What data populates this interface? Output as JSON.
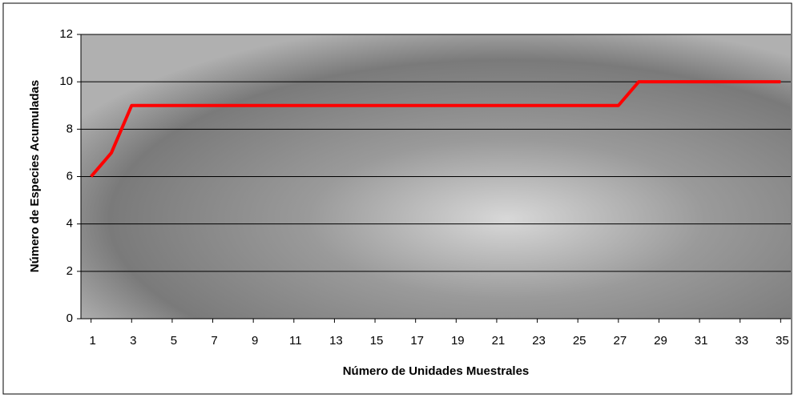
{
  "chart_data": {
    "type": "line",
    "x": [
      1,
      2,
      3,
      4,
      5,
      6,
      7,
      8,
      9,
      10,
      11,
      12,
      13,
      14,
      15,
      16,
      17,
      18,
      19,
      20,
      21,
      22,
      23,
      24,
      25,
      26,
      27,
      28,
      29,
      30,
      31,
      32,
      33,
      34,
      35
    ],
    "values": [
      6,
      7,
      9,
      9,
      9,
      9,
      9,
      9,
      9,
      9,
      9,
      9,
      9,
      9,
      9,
      9,
      9,
      9,
      9,
      9,
      9,
      9,
      9,
      9,
      9,
      9,
      9,
      10,
      10,
      10,
      10,
      10,
      10,
      10,
      10
    ],
    "color": "#ff0000",
    "x_label": "Número de Unidades Muestrales",
    "y_label": "Número de Especies Acumuladas",
    "xlim": [
      0.5,
      35.5
    ],
    "xticks": [
      1,
      3,
      5,
      7,
      9,
      11,
      13,
      15,
      17,
      19,
      21,
      23,
      25,
      27,
      29,
      31,
      33,
      35
    ],
    "ylim": [
      0,
      12
    ],
    "yticks": [
      0,
      2,
      4,
      6,
      8,
      10,
      12
    ],
    "grid": true
  }
}
